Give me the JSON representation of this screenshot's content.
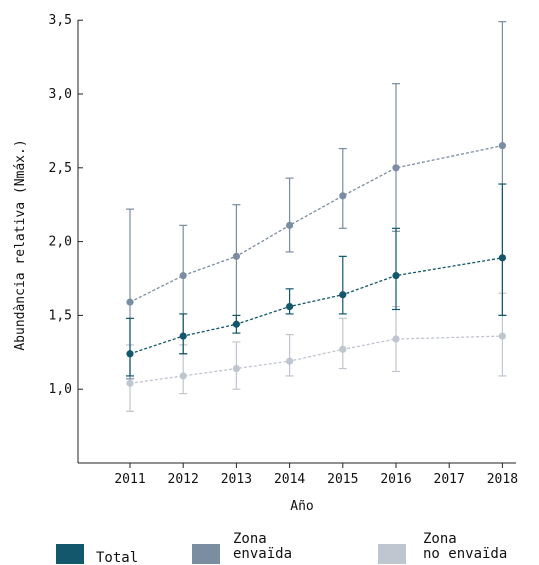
{
  "chart_data": {
    "type": "line",
    "title": "",
    "xlabel": "Año",
    "ylabel": "Abundància relativa (Nmáx.)",
    "x": [
      "2011",
      "2012",
      "2013",
      "2014",
      "2015",
      "2016",
      "2017",
      "2018"
    ],
    "y_ticks": [
      "1,0",
      "1,5",
      "2,0",
      "2,5",
      "3,0",
      "3,5"
    ],
    "ylim": [
      0.5,
      3.5
    ],
    "grid": false,
    "legend_position": "bottom",
    "series": [
      {
        "name": "Zona no envaïda",
        "color": "#c0c6cf",
        "x": [
          "2011",
          "2012",
          "2013",
          "2014",
          "2015",
          "2016",
          "2018"
        ],
        "values": [
          1.04,
          1.09,
          1.14,
          1.19,
          1.27,
          1.34,
          1.36
        ],
        "error_low": [
          0.85,
          0.97,
          1.0,
          1.09,
          1.14,
          1.12,
          1.09
        ],
        "error_high": [
          1.3,
          1.3,
          1.32,
          1.37,
          1.48,
          1.56,
          1.65
        ]
      },
      {
        "name": "Zona envaïda",
        "color": "#7b8da0",
        "x": [
          "2011",
          "2012",
          "2013",
          "2014",
          "2015",
          "2016",
          "2018"
        ],
        "values": [
          1.59,
          1.77,
          1.9,
          2.11,
          2.31,
          2.5,
          2.65
        ],
        "error_low": [
          1.07,
          1.24,
          1.44,
          1.93,
          2.09,
          2.07,
          1.5
        ],
        "error_high": [
          2.22,
          2.11,
          2.25,
          2.43,
          2.63,
          3.07,
          3.49
        ]
      },
      {
        "name": "Total",
        "color": "#12576b",
        "x": [
          "2011",
          "2012",
          "2013",
          "2014",
          "2015",
          "2016",
          "2018"
        ],
        "values": [
          1.24,
          1.36,
          1.44,
          1.56,
          1.64,
          1.77,
          1.89
        ],
        "error_low": [
          1.09,
          1.24,
          1.38,
          1.51,
          1.51,
          1.54,
          1.5
        ],
        "error_high": [
          1.48,
          1.51,
          1.5,
          1.68,
          1.9,
          2.09,
          2.39
        ]
      }
    ],
    "legend": [
      {
        "label_lines": [
          "Total"
        ],
        "color": "#12576b"
      },
      {
        "label_lines": [
          "Zona",
          "envaïda"
        ],
        "color": "#7b8da0"
      },
      {
        "label_lines": [
          "Zona",
          "no envaïda"
        ],
        "color": "#c0c6cf"
      }
    ]
  }
}
